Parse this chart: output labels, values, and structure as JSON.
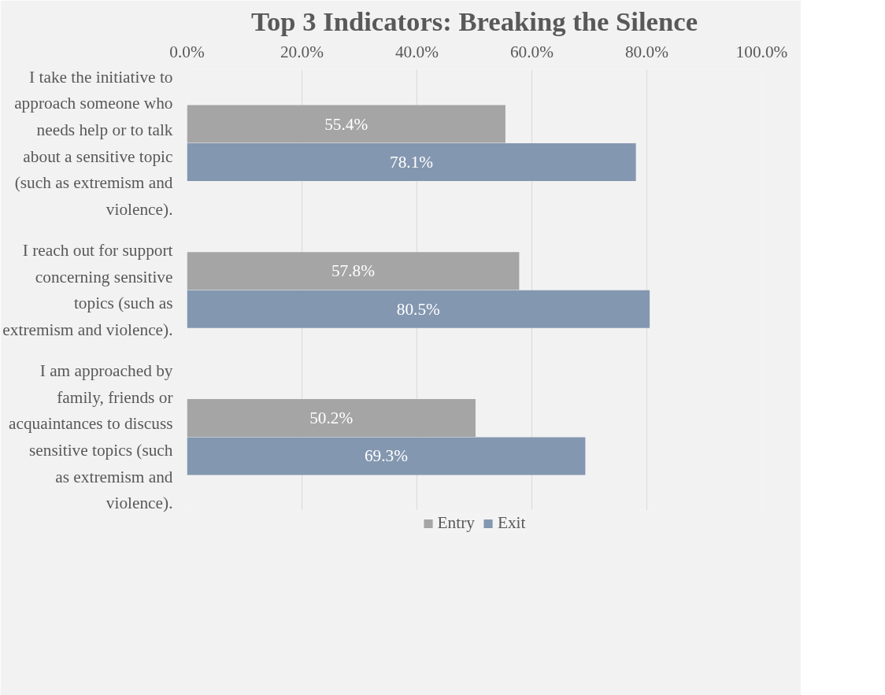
{
  "chart_data": {
    "type": "bar",
    "orientation": "horizontal",
    "title": "Top 3 Indicators: Breaking the Silence",
    "categories": [
      "I take the initiative to approach someone who needs help or to talk about a sensitive topic (such as extremism and violence).",
      "I reach out for support concerning sensitive topics (such as extremism and violence).",
      "I am approached by family, friends or acquaintances to discuss sensitive topics (such as extremism and violence)."
    ],
    "series": [
      {
        "name": "Entry",
        "color": "#a5a5a5",
        "values": [
          55.4,
          57.8,
          50.2
        ],
        "value_labels": [
          "55.4%",
          "57.8%",
          "50.2%"
        ]
      },
      {
        "name": "Exit",
        "color": "#8497b0",
        "values": [
          78.1,
          80.5,
          69.3
        ],
        "value_labels": [
          "78.1%",
          "80.5%",
          "69.3%"
        ]
      }
    ],
    "xlim": [
      0,
      100
    ],
    "xticks": [
      {
        "value": 0,
        "label": "0.0%"
      },
      {
        "value": 20,
        "label": "20.0%"
      },
      {
        "value": 40,
        "label": "40.0%"
      },
      {
        "value": 60,
        "label": "60.0%"
      },
      {
        "value": 80,
        "label": "80.0%"
      },
      {
        "value": 100,
        "label": "100.0%"
      }
    ],
    "grid": "x",
    "legend": "bottom"
  }
}
